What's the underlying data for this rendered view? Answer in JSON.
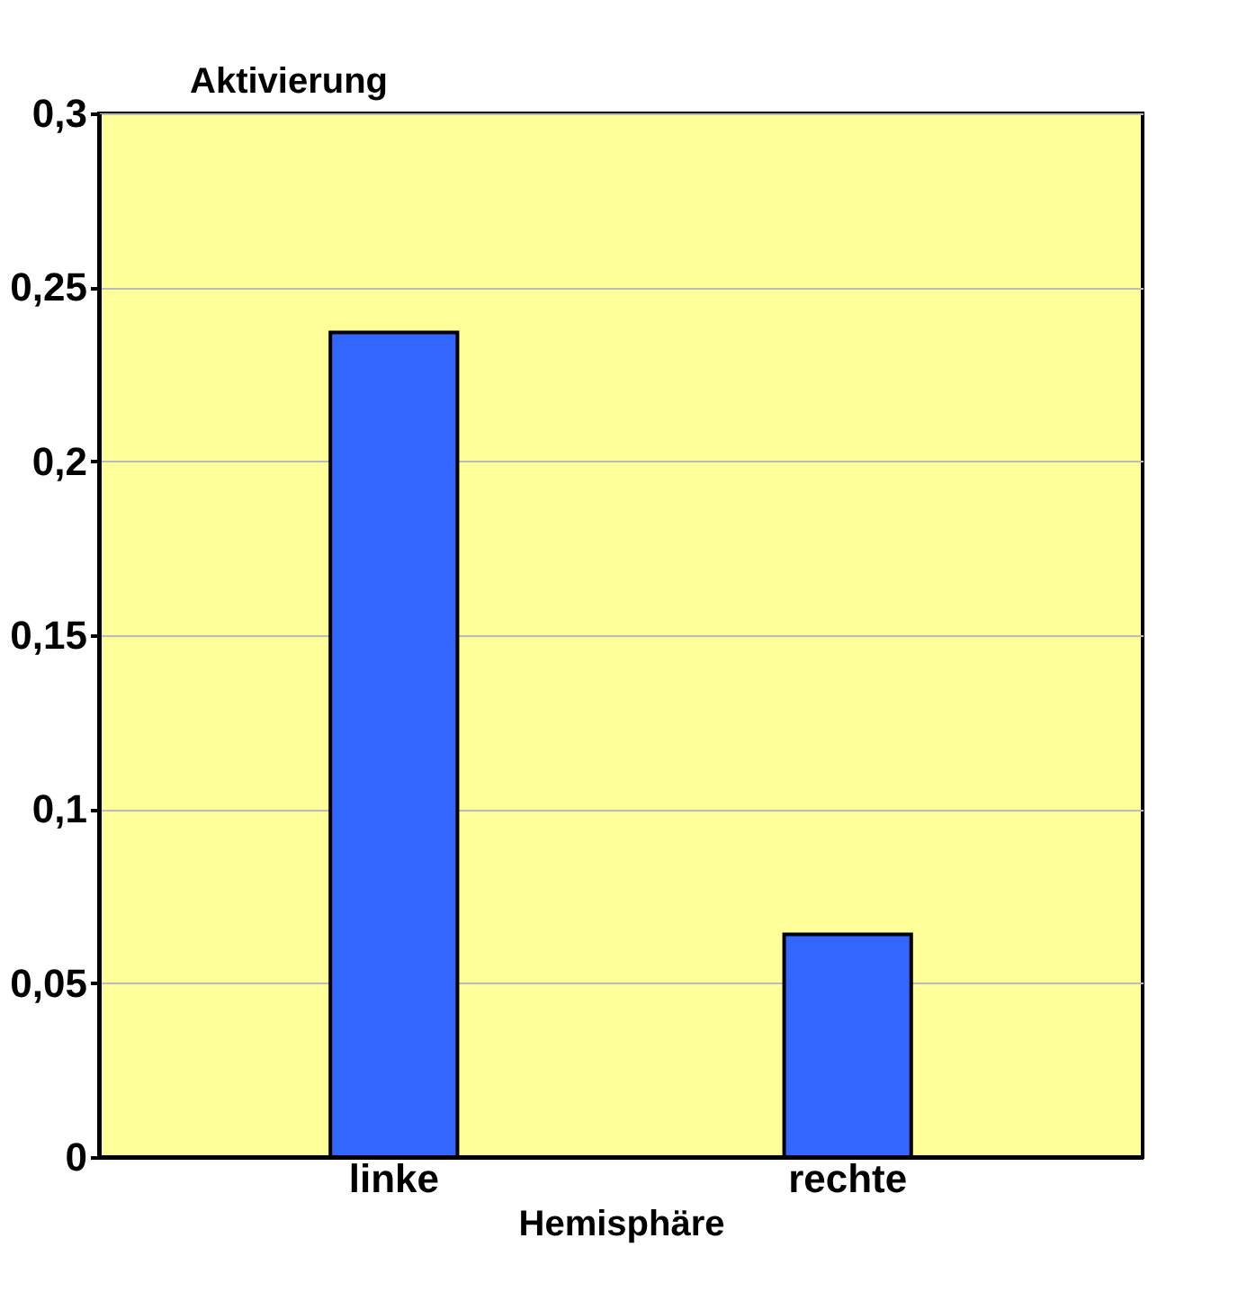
{
  "chart_data": {
    "type": "bar",
    "ylabel": "Aktivierung",
    "xlabel": "Hemisphäre",
    "categories": [
      "linke",
      "rechte"
    ],
    "series": [
      {
        "color": "#3366ff",
        "values": [
          0.237,
          0.064
        ]
      }
    ],
    "ylim": [
      0,
      0.3
    ],
    "yticks": [
      {
        "value": 0,
        "label": "0"
      },
      {
        "value": 0.05,
        "label": "0,05"
      },
      {
        "value": 0.1,
        "label": "0,1"
      },
      {
        "value": 0.15,
        "label": "0,15"
      },
      {
        "value": 0.2,
        "label": "0,2"
      },
      {
        "value": 0.25,
        "label": "0,25"
      },
      {
        "value": 0.3,
        "label": "0,3"
      }
    ],
    "grid": "y",
    "legend": false
  }
}
